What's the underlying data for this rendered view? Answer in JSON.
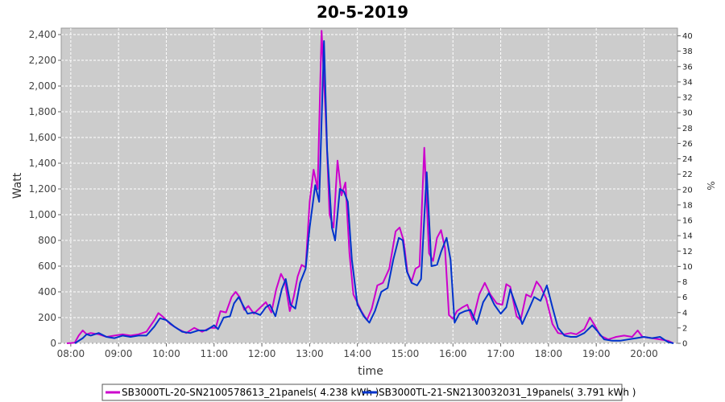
{
  "chart_data": {
    "type": "line",
    "title": "20-5-2019",
    "xlabel": "time",
    "ylabel": "Watt",
    "y2label": "%",
    "ylim": [
      0,
      2450
    ],
    "y2lim": [
      0,
      41
    ],
    "xlim": [
      "07:48",
      "20:42"
    ],
    "grid": true,
    "legend_position": "bottom",
    "x_ticks": [
      "08:00",
      "09:00",
      "10:00",
      "11:00",
      "12:00",
      "13:00",
      "14:00",
      "15:00",
      "16:00",
      "17:00",
      "18:00",
      "19:00",
      "20:00"
    ],
    "y_ticks": [
      "0",
      "200",
      "400",
      "600",
      "800",
      "1,000",
      "1,200",
      "1,400",
      "1,600",
      "1,800",
      "2,000",
      "2,200",
      "2,400"
    ],
    "y2_ticks": [
      "0",
      "2",
      "4",
      "6",
      "8",
      "10",
      "12",
      "14",
      "16",
      "18",
      "20",
      "22",
      "24",
      "26",
      "28",
      "30",
      "32",
      "34",
      "36",
      "38",
      "40"
    ],
    "series": [
      {
        "name": "SB3000TL-20-SN2100578613_21panels( 4.238 kWh )",
        "color": "#cc00cc",
        "points": [
          [
            "07:55",
            0
          ],
          [
            "08:05",
            5
          ],
          [
            "08:10",
            60
          ],
          [
            "08:15",
            100
          ],
          [
            "08:20",
            70
          ],
          [
            "08:25",
            80
          ],
          [
            "08:35",
            70
          ],
          [
            "08:45",
            50
          ],
          [
            "08:55",
            60
          ],
          [
            "09:05",
            70
          ],
          [
            "09:15",
            60
          ],
          [
            "09:25",
            70
          ],
          [
            "09:35",
            90
          ],
          [
            "09:45",
            180
          ],
          [
            "09:50",
            235
          ],
          [
            "09:55",
            210
          ],
          [
            "10:05",
            150
          ],
          [
            "10:15",
            110
          ],
          [
            "10:25",
            80
          ],
          [
            "10:35",
            120
          ],
          [
            "10:45",
            90
          ],
          [
            "10:55",
            120
          ],
          [
            "11:02",
            120
          ],
          [
            "11:08",
            250
          ],
          [
            "11:15",
            240
          ],
          [
            "11:22",
            360
          ],
          [
            "11:27",
            400
          ],
          [
            "11:32",
            360
          ],
          [
            "11:38",
            260
          ],
          [
            "11:43",
            290
          ],
          [
            "11:50",
            230
          ],
          [
            "11:55",
            260
          ],
          [
            "12:00",
            290
          ],
          [
            "12:05",
            320
          ],
          [
            "12:12",
            240
          ],
          [
            "12:18",
            420
          ],
          [
            "12:24",
            540
          ],
          [
            "12:29",
            480
          ],
          [
            "12:35",
            250
          ],
          [
            "12:40",
            360
          ],
          [
            "12:45",
            520
          ],
          [
            "12:50",
            610
          ],
          [
            "12:55",
            590
          ],
          [
            "13:00",
            1100
          ],
          [
            "13:05",
            1350
          ],
          [
            "13:10",
            1200
          ],
          [
            "13:15",
            2430
          ],
          [
            "13:20",
            1800
          ],
          [
            "13:25",
            1000
          ],
          [
            "13:30",
            900
          ],
          [
            "13:35",
            1420
          ],
          [
            "13:40",
            1150
          ],
          [
            "13:45",
            1250
          ],
          [
            "13:50",
            700
          ],
          [
            "13:55",
            380
          ],
          [
            "14:05",
            250
          ],
          [
            "14:12",
            180
          ],
          [
            "14:18",
            270
          ],
          [
            "14:25",
            450
          ],
          [
            "14:32",
            470
          ],
          [
            "14:40",
            580
          ],
          [
            "14:48",
            870
          ],
          [
            "14:53",
            900
          ],
          [
            "14:58",
            800
          ],
          [
            "15:03",
            550
          ],
          [
            "15:08",
            480
          ],
          [
            "15:13",
            580
          ],
          [
            "15:18",
            600
          ],
          [
            "15:24",
            1520
          ],
          [
            "15:30",
            700
          ],
          [
            "15:35",
            640
          ],
          [
            "15:40",
            820
          ],
          [
            "15:45",
            880
          ],
          [
            "15:50",
            740
          ],
          [
            "15:55",
            220
          ],
          [
            "16:00",
            190
          ],
          [
            "16:05",
            250
          ],
          [
            "16:12",
            280
          ],
          [
            "16:18",
            300
          ],
          [
            "16:25",
            180
          ],
          [
            "16:33",
            380
          ],
          [
            "16:40",
            470
          ],
          [
            "16:47",
            380
          ],
          [
            "16:55",
            310
          ],
          [
            "17:02",
            300
          ],
          [
            "17:07",
            460
          ],
          [
            "17:12",
            440
          ],
          [
            "17:20",
            210
          ],
          [
            "17:25",
            180
          ],
          [
            "17:32",
            380
          ],
          [
            "17:38",
            360
          ],
          [
            "17:45",
            480
          ],
          [
            "17:50",
            440
          ],
          [
            "17:57",
            350
          ],
          [
            "18:05",
            150
          ],
          [
            "18:12",
            80
          ],
          [
            "18:20",
            70
          ],
          [
            "18:28",
            80
          ],
          [
            "18:35",
            70
          ],
          [
            "18:45",
            110
          ],
          [
            "18:52",
            200
          ],
          [
            "18:58",
            140
          ],
          [
            "19:05",
            60
          ],
          [
            "19:15",
            30
          ],
          [
            "19:25",
            50
          ],
          [
            "19:35",
            60
          ],
          [
            "19:45",
            50
          ],
          [
            "19:52",
            100
          ],
          [
            "19:58",
            50
          ],
          [
            "20:10",
            40
          ],
          [
            "20:20",
            30
          ],
          [
            "20:30",
            20
          ],
          [
            "20:37",
            0
          ]
        ]
      },
      {
        "name": "SB3000TL-21-SN2130032031_19panels( 3.791 kWh )",
        "color": "#0033cc",
        "points": [
          [
            "08:05",
            0
          ],
          [
            "08:15",
            40
          ],
          [
            "08:20",
            70
          ],
          [
            "08:25",
            60
          ],
          [
            "08:35",
            80
          ],
          [
            "08:45",
            50
          ],
          [
            "08:55",
            40
          ],
          [
            "09:05",
            60
          ],
          [
            "09:15",
            50
          ],
          [
            "09:25",
            60
          ],
          [
            "09:35",
            60
          ],
          [
            "09:45",
            130
          ],
          [
            "09:52",
            195
          ],
          [
            "10:00",
            180
          ],
          [
            "10:10",
            130
          ],
          [
            "10:20",
            90
          ],
          [
            "10:30",
            80
          ],
          [
            "10:40",
            100
          ],
          [
            "10:50",
            100
          ],
          [
            "11:00",
            140
          ],
          [
            "11:05",
            110
          ],
          [
            "11:12",
            200
          ],
          [
            "11:20",
            210
          ],
          [
            "11:25",
            310
          ],
          [
            "11:31",
            360
          ],
          [
            "11:36",
            300
          ],
          [
            "11:42",
            230
          ],
          [
            "11:50",
            240
          ],
          [
            "11:58",
            220
          ],
          [
            "12:05",
            280
          ],
          [
            "12:10",
            300
          ],
          [
            "12:17",
            210
          ],
          [
            "12:25",
            420
          ],
          [
            "12:30",
            500
          ],
          [
            "12:36",
            300
          ],
          [
            "12:42",
            270
          ],
          [
            "12:48",
            470
          ],
          [
            "12:55",
            580
          ],
          [
            "13:00",
            900
          ],
          [
            "13:07",
            1230
          ],
          [
            "13:12",
            1100
          ],
          [
            "13:18",
            2350
          ],
          [
            "13:22",
            1500
          ],
          [
            "13:28",
            900
          ],
          [
            "13:32",
            800
          ],
          [
            "13:38",
            1200
          ],
          [
            "13:43",
            1180
          ],
          [
            "13:48",
            1100
          ],
          [
            "13:53",
            650
          ],
          [
            "14:00",
            300
          ],
          [
            "14:08",
            210
          ],
          [
            "14:15",
            160
          ],
          [
            "14:22",
            250
          ],
          [
            "14:30",
            400
          ],
          [
            "14:38",
            430
          ],
          [
            "14:45",
            650
          ],
          [
            "14:52",
            820
          ],
          [
            "14:57",
            800
          ],
          [
            "15:02",
            560
          ],
          [
            "15:08",
            470
          ],
          [
            "15:15",
            450
          ],
          [
            "15:20",
            500
          ],
          [
            "15:27",
            1330
          ],
          [
            "15:33",
            600
          ],
          [
            "15:40",
            610
          ],
          [
            "15:45",
            710
          ],
          [
            "15:52",
            820
          ],
          [
            "15:57",
            650
          ],
          [
            "16:02",
            160
          ],
          [
            "16:08",
            230
          ],
          [
            "16:15",
            250
          ],
          [
            "16:22",
            260
          ],
          [
            "16:30",
            150
          ],
          [
            "16:38",
            320
          ],
          [
            "16:45",
            390
          ],
          [
            "16:52",
            300
          ],
          [
            "17:00",
            230
          ],
          [
            "17:07",
            280
          ],
          [
            "17:12",
            420
          ],
          [
            "17:20",
            280
          ],
          [
            "17:27",
            150
          ],
          [
            "17:35",
            260
          ],
          [
            "17:42",
            360
          ],
          [
            "17:50",
            330
          ],
          [
            "17:58",
            450
          ],
          [
            "18:05",
            280
          ],
          [
            "18:12",
            120
          ],
          [
            "18:20",
            60
          ],
          [
            "18:28",
            50
          ],
          [
            "18:35",
            50
          ],
          [
            "18:45",
            80
          ],
          [
            "18:55",
            140
          ],
          [
            "19:02",
            90
          ],
          [
            "19:10",
            30
          ],
          [
            "19:20",
            20
          ],
          [
            "19:30",
            20
          ],
          [
            "19:40",
            30
          ],
          [
            "19:50",
            40
          ],
          [
            "20:00",
            50
          ],
          [
            "20:10",
            40
          ],
          [
            "20:20",
            50
          ],
          [
            "20:30",
            10
          ],
          [
            "20:37",
            0
          ]
        ]
      }
    ]
  }
}
